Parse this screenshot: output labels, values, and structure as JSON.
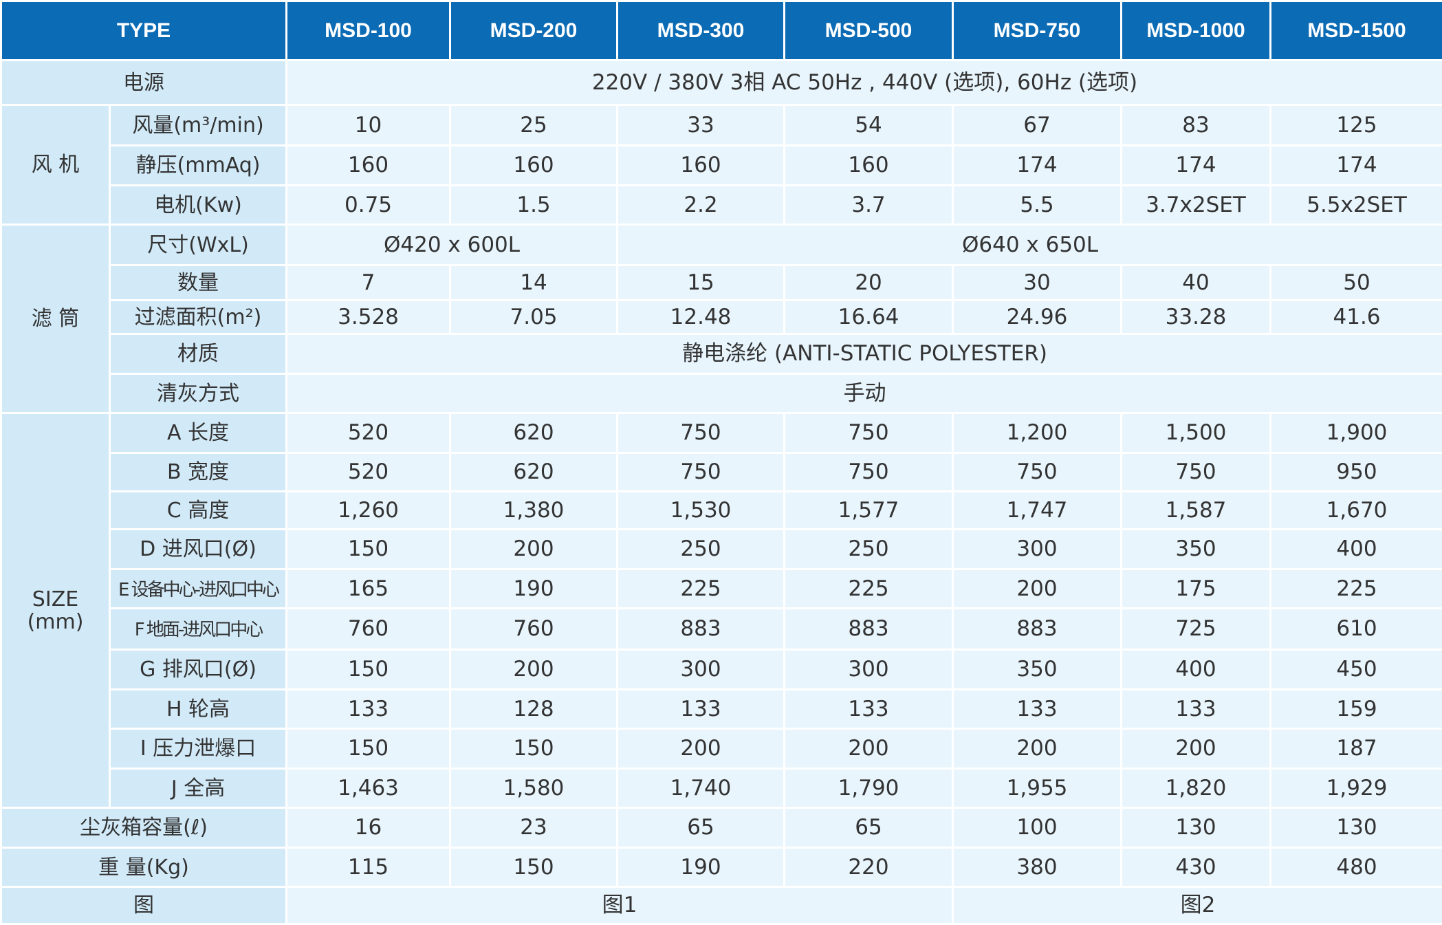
{
  "theme": {
    "header_bg": "#0b6bb5",
    "label_bg": "#d2eaf8",
    "cell_bg": "#e8f5fd",
    "text": "#333333"
  },
  "header": {
    "type_label": "TYPE",
    "models": [
      "MSD-100",
      "MSD-200",
      "MSD-300",
      "MSD-500",
      "MSD-750",
      "MSD-1000",
      "MSD-1500"
    ]
  },
  "power": {
    "label": "电源",
    "value": "220V / 380V 3相 AC 50Hz , 440V (选项), 60Hz (选项)"
  },
  "fan": {
    "group_label": "风 机",
    "rows": [
      {
        "label": "风量(m³/min)",
        "values": [
          "10",
          "25",
          "33",
          "54",
          "67",
          "83",
          "125"
        ]
      },
      {
        "label": "静压(mmAq)",
        "values": [
          "160",
          "160",
          "160",
          "160",
          "174",
          "174",
          "174"
        ]
      },
      {
        "label": "电机(Kw)",
        "values": [
          "0.75",
          "1.5",
          "2.2",
          "3.7",
          "5.5",
          "3.7x2SET",
          "5.5x2SET"
        ]
      }
    ]
  },
  "filter": {
    "group_label": "滤 筒",
    "size": {
      "label": "尺寸(WxL)",
      "small": "Ø420 x 600L",
      "large": "Ø640 x 650L"
    },
    "quantity": {
      "label": "数量",
      "values": [
        "7",
        "14",
        "15",
        "20",
        "30",
        "40",
        "50"
      ]
    },
    "area": {
      "label": "过滤面积(m²)",
      "values": [
        "3.528",
        "7.05",
        "12.48",
        "16.64",
        "24.96",
        "33.28",
        "41.6"
      ]
    },
    "material": {
      "label": "材质",
      "value": "静电涤纶 (ANTI-STATIC POLYESTER)"
    },
    "cleaning": {
      "label": "清灰方式",
      "value": "手动"
    }
  },
  "size": {
    "group_label": "SIZE",
    "group_unit": "(mm)",
    "rows": [
      {
        "label": "A 长度",
        "values": [
          "520",
          "620",
          "750",
          "750",
          "1,200",
          "1,500",
          "1,900"
        ]
      },
      {
        "label": "B 宽度",
        "values": [
          "520",
          "620",
          "750",
          "750",
          "750",
          "750",
          "950"
        ]
      },
      {
        "label": "C 高度",
        "values": [
          "1,260",
          "1,380",
          "1,530",
          "1,577",
          "1,747",
          "1,587",
          "1,670"
        ]
      },
      {
        "label": "D 进风口(Ø)",
        "values": [
          "150",
          "200",
          "250",
          "250",
          "300",
          "350",
          "400"
        ]
      },
      {
        "label": "E 设备中心-进风口中心",
        "values": [
          "165",
          "190",
          "225",
          "225",
          "200",
          "175",
          "225"
        ]
      },
      {
        "label": "F 地面-进风口中心",
        "values": [
          "760",
          "760",
          "883",
          "883",
          "883",
          "725",
          "610"
        ]
      },
      {
        "label": "G 排风口(Ø)",
        "values": [
          "150",
          "200",
          "300",
          "300",
          "350",
          "400",
          "450"
        ]
      },
      {
        "label": "H 轮高",
        "values": [
          "133",
          "128",
          "133",
          "133",
          "133",
          "133",
          "159"
        ]
      },
      {
        "label": "I 压力泄爆口",
        "values": [
          "150",
          "150",
          "200",
          "200",
          "200",
          "200",
          "187"
        ]
      },
      {
        "label": "J 全高",
        "values": [
          "1,463",
          "1,580",
          "1,740",
          "1,790",
          "1,955",
          "1,820",
          "1,929"
        ]
      }
    ]
  },
  "dust_box": {
    "label": "尘灰箱容量(ℓ)",
    "values": [
      "16",
      "23",
      "65",
      "65",
      "100",
      "130",
      "130"
    ]
  },
  "weight": {
    "label": "重 量(Kg)",
    "values": [
      "115",
      "150",
      "190",
      "220",
      "380",
      "430",
      "480"
    ]
  },
  "figure": {
    "label": "图",
    "fig1": "图1",
    "fig2": "图2"
  }
}
